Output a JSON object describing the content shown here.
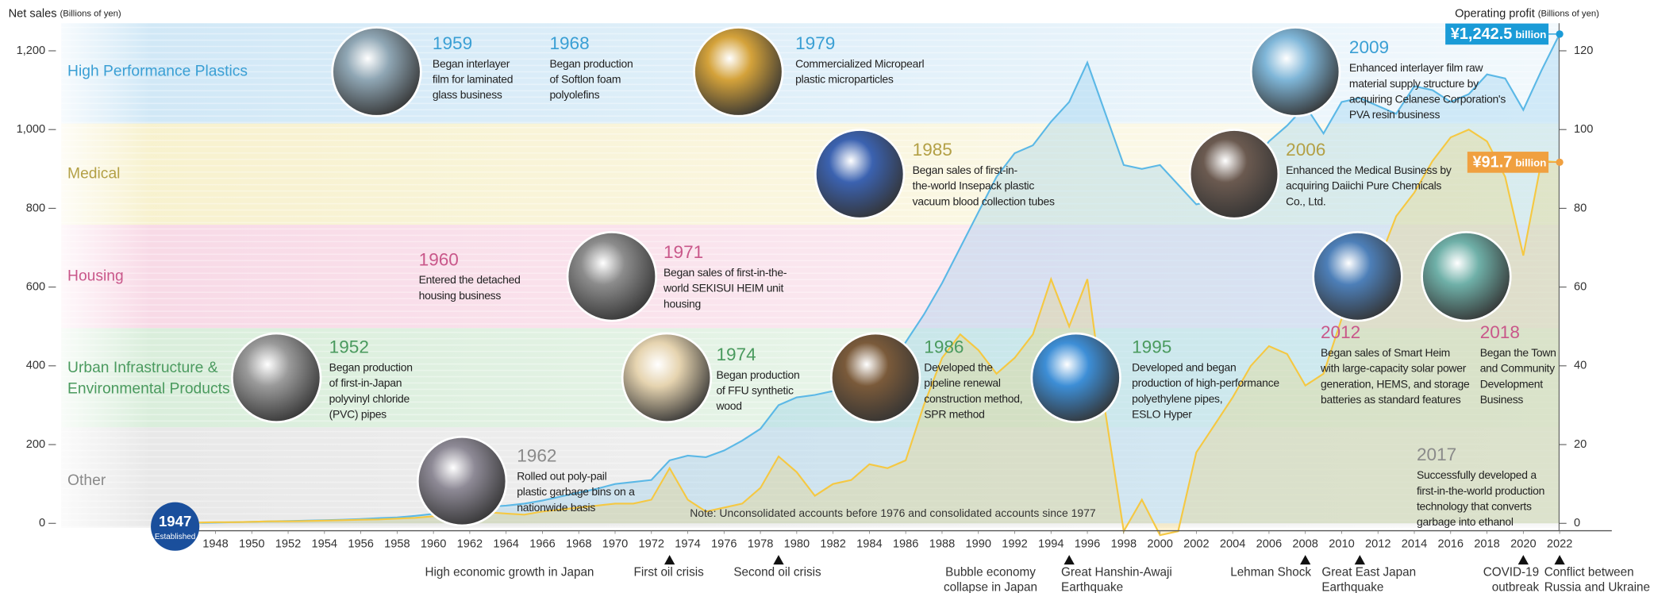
{
  "chart_data": {
    "type": "line",
    "y_label": "Net sales",
    "y_unit": "(Billions of yen)",
    "y2_label": "Operating profit",
    "y2_unit": "(Billions of yen)",
    "note": "Note: Unconsolidated accounts before 1976 and consolidated accounts since 1977",
    "founding": {
      "year": 1947,
      "label": "Established"
    },
    "xlim": [
      1944.5,
      2025
    ],
    "xticks": [
      1948,
      1950,
      1952,
      1954,
      1956,
      1958,
      1960,
      1962,
      1964,
      1966,
      1968,
      1970,
      1972,
      1974,
      1976,
      1978,
      1980,
      1982,
      1984,
      1986,
      1988,
      1990,
      1992,
      1994,
      1996,
      1998,
      2000,
      2002,
      2004,
      2006,
      2008,
      2010,
      2012,
      2014,
      2016,
      2018,
      2020,
      2022
    ],
    "ylim": [
      0,
      1270
    ],
    "yticks": [
      0,
      200,
      400,
      600,
      800,
      {
        "value": 1000,
        "label": "1,000"
      },
      {
        "value": 1200,
        "label": "1,200"
      }
    ],
    "y2lim": [
      0,
      127
    ],
    "y2ticks": [
      0,
      20,
      40,
      60,
      80,
      100,
      120
    ],
    "x": [
      1947,
      1948,
      1949,
      1950,
      1951,
      1952,
      1953,
      1954,
      1955,
      1956,
      1957,
      1958,
      1959,
      1960,
      1961,
      1962,
      1963,
      1964,
      1965,
      1966,
      1967,
      1968,
      1969,
      1970,
      1971,
      1972,
      1973,
      1974,
      1975,
      1976,
      1977,
      1978,
      1979,
      1980,
      1981,
      1982,
      1983,
      1984,
      1985,
      1986,
      1987,
      1988,
      1989,
      1990,
      1991,
      1992,
      1993,
      1994,
      1995,
      1996,
      1997,
      1998,
      1999,
      2000,
      2001,
      2002,
      2003,
      2004,
      2005,
      2006,
      2007,
      2008,
      2009,
      2010,
      2011,
      2012,
      2013,
      2014,
      2015,
      2016,
      2017,
      2018,
      2019,
      2020,
      2021,
      2022
    ],
    "series": [
      {
        "name": "Net sales",
        "color": "#5bb8e6",
        "axis": "y",
        "end_label": "¥1,242.5",
        "end_label_unit": "billion",
        "label_color": "#1a9bd7",
        "values": [
          1,
          2,
          3,
          4,
          5,
          6,
          7,
          8,
          9,
          11,
          13,
          15,
          19,
          24,
          30,
          36,
          42,
          45,
          50,
          58,
          68,
          78,
          88,
          100,
          105,
          110,
          160,
          172,
          168,
          185,
          210,
          240,
          300,
          320,
          326,
          336,
          340,
          350,
          390,
          460,
          530,
          610,
          700,
          790,
          880,
          940,
          960,
          1020,
          1070,
          1170,
          1040,
          910,
          900,
          910,
          860,
          810,
          820,
          850,
          910,
          970,
          1010,
          1060,
          990,
          1070,
          1080,
          1060,
          1040,
          1110,
          1100,
          1070,
          1090,
          1140,
          1130,
          1050,
          1150,
          1242.5
        ]
      },
      {
        "name": "Operating profit",
        "color": "#f5c842",
        "axis": "y2",
        "end_label": "¥91.7",
        "end_label_unit": "billion",
        "label_color": "#f0a040",
        "values": [
          0.2,
          0.3,
          0.3,
          0.4,
          0.5,
          0.5,
          0.6,
          0.7,
          0.8,
          0.9,
          1,
          1.2,
          1.4,
          1.8,
          2.2,
          2.5,
          2.8,
          2.5,
          2.2,
          3,
          3.5,
          4,
          4.5,
          5,
          5,
          6,
          14,
          6,
          3,
          4,
          5,
          9,
          17,
          13,
          7,
          10,
          11,
          15,
          14,
          16,
          30,
          42,
          48,
          44,
          38,
          42,
          48,
          62,
          50,
          62,
          28,
          -2,
          6,
          -3,
          -2,
          18,
          25,
          32,
          40,
          45,
          43,
          35,
          38,
          52,
          60,
          66,
          78,
          84,
          92,
          98,
          100,
          97,
          88,
          68,
          92,
          91.7
        ]
      }
    ],
    "bands": [
      {
        "name": [
          "High Performance Plastics"
        ],
        "color": "#3a9fd4",
        "fill": "#c9e4f5",
        "milestones": [
          {
            "year": 1959,
            "lines": [
              "Began interlayer",
              "film for laminated",
              "glass business"
            ]
          },
          {
            "year": 1968,
            "lines": [
              "Began production",
              "of Softlon foam",
              "polyolefins"
            ]
          },
          {
            "year": 1979,
            "lines": [
              "Commercialized Micropearl",
              "plastic microparticles"
            ]
          },
          {
            "year": 2009,
            "lines": [
              "Enhanced interlayer film raw",
              "material supply structure by",
              "acquiring Celanese Corporation's",
              "PVA resin business"
            ]
          }
        ]
      },
      {
        "name": [
          "Medical"
        ],
        "color": "#b3a046",
        "fill": "#f6efc6",
        "milestones": [
          {
            "year": 1985,
            "lines": [
              "Began sales of first-in-",
              "the-world Insepack plastic",
              "vacuum blood collection tubes"
            ]
          },
          {
            "year": 2006,
            "lines": [
              "Enhanced the Medical Business by",
              "acquiring Daiichi Pure Chemicals",
              "Co., Ltd."
            ]
          }
        ]
      },
      {
        "name": [
          "Housing"
        ],
        "color": "#c9578a",
        "fill": "#f7d3e2",
        "milestones": [
          {
            "year": 1960,
            "lines": [
              "Entered the detached",
              "housing business"
            ]
          },
          {
            "year": 1971,
            "lines": [
              "Began sales of first-in-the-",
              "world SEKISUI HEIM unit",
              "housing"
            ]
          },
          {
            "year": 2012,
            "lines": [
              "Began sales of Smart Heim",
              "with large-capacity solar power",
              "generation, HEMS, and storage",
              "batteries as standard features"
            ]
          },
          {
            "year": 2018,
            "lines": [
              "Began the Town",
              "and Community",
              "Development",
              "Business"
            ]
          }
        ]
      },
      {
        "name": [
          "Urban Infrastructure &",
          "Environmental Products"
        ],
        "color": "#4a9a5e",
        "fill": "#d3ebd5",
        "milestones": [
          {
            "year": 1952,
            "lines": [
              "Began production",
              "of first-in-Japan",
              "polyvinyl chloride",
              "(PVC) pipes"
            ]
          },
          {
            "year": 1974,
            "lines": [
              "Began production",
              "of FFU synthetic",
              "wood"
            ]
          },
          {
            "year": 1986,
            "lines": [
              "Developed the",
              "pipeline renewal",
              "construction method,",
              "SPR method"
            ]
          },
          {
            "year": 1995,
            "lines": [
              "Developed and began",
              "production of high-performance",
              "polyethylene pipes,",
              "ESLO Hyper"
            ]
          }
        ]
      },
      {
        "name": [
          "Other"
        ],
        "color": "#8a8a8a",
        "fill": "#e4e4e4",
        "milestones": [
          {
            "year": 1962,
            "lines": [
              "Rolled out poly-pail",
              "plastic garbage bins on a",
              "nationwide basis"
            ]
          },
          {
            "year": 2017,
            "lines": [
              "Successfully developed a",
              "first-in-the-world production",
              "technology that converts",
              "garbage into ethanol"
            ]
          }
        ]
      }
    ],
    "events": [
      {
        "label": [
          "High economic growth in Japan"
        ]
      },
      {
        "label": [
          "First oil crisis"
        ],
        "x": 1973
      },
      {
        "label": [
          "Second oil crisis"
        ],
        "x": 1979
      },
      {
        "label": [
          "Bubble economy",
          "collapse in Japan"
        ]
      },
      {
        "label": [
          "Great Hanshin-Awaji",
          "Earthquake"
        ],
        "x": 1995
      },
      {
        "label": [
          "Lehman Shock"
        ],
        "x": 2008
      },
      {
        "label": [
          "Great East Japan",
          "Earthquake"
        ],
        "x": 2011
      },
      {
        "label": [
          "COVID-19",
          "outbreak"
        ],
        "x": 2020
      },
      {
        "label": [
          "Conflict between",
          "Russia and Ukraine"
        ],
        "x": 2022
      }
    ]
  }
}
